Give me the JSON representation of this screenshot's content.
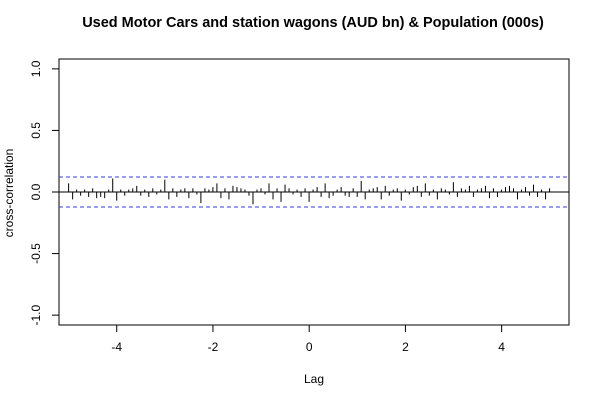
{
  "chart_data": {
    "type": "bar",
    "subtype": "cross-correlation (ccf) plot",
    "title": "Used Motor Cars and station wagons (AUD bn) & Population (000s)",
    "xlabel": "Lag",
    "ylabel": "cross-correlation",
    "xlim": [
      -5.2,
      5.4
    ],
    "ylim": [
      -1.08,
      1.08
    ],
    "x_ticks": [
      -4,
      -2,
      0,
      2,
      4
    ],
    "x_tick_labels": [
      "-4",
      "-2",
      "0",
      "2",
      "4"
    ],
    "y_ticks": [
      -1.0,
      -0.5,
      0.0,
      0.5,
      1.0
    ],
    "y_tick_labels": [
      "-1.0",
      "-0.5",
      "0.0",
      "0.5",
      "1.0"
    ],
    "confidence_limit": 0.122,
    "confidence_color": "#3b3bdb",
    "bar_color": "#000000",
    "lag_step": 0.0833,
    "lag_start": -5.0,
    "values": [
      0.07,
      -0.06,
      0.02,
      -0.03,
      0.02,
      -0.04,
      0.03,
      -0.05,
      -0.04,
      -0.05,
      0.02,
      0.11,
      -0.07,
      0.02,
      -0.03,
      0.02,
      0.03,
      0.05,
      -0.03,
      0.02,
      -0.04,
      0.03,
      -0.02,
      0.02,
      0.1,
      -0.06,
      0.03,
      -0.04,
      0.02,
      0.03,
      -0.05,
      0.03,
      -0.02,
      -0.09,
      0.03,
      0.02,
      0.04,
      0.07,
      -0.05,
      0.03,
      -0.06,
      0.05,
      0.04,
      0.03,
      0.02,
      -0.03,
      -0.1,
      0.02,
      0.03,
      -0.02,
      0.07,
      -0.06,
      0.03,
      -0.08,
      0.06,
      0.03,
      -0.02,
      0.02,
      -0.04,
      0.03,
      -0.08,
      0.02,
      0.04,
      -0.04,
      0.07,
      -0.05,
      -0.03,
      0.02,
      0.04,
      -0.03,
      -0.04,
      0.03,
      -0.04,
      0.09,
      -0.06,
      0.02,
      0.03,
      0.04,
      -0.06,
      0.05,
      -0.03,
      0.02,
      0.03,
      -0.07,
      0.02,
      -0.02,
      0.04,
      0.05,
      -0.04,
      0.07,
      -0.03,
      0.02,
      -0.06,
      0.03,
      0.02,
      -0.02,
      0.08,
      -0.04,
      0.03,
      0.02,
      0.05,
      -0.04,
      0.02,
      0.03,
      0.05,
      -0.05,
      0.03,
      -0.04,
      0.02,
      0.04,
      0.05,
      0.03,
      -0.06,
      0.02,
      0.04,
      -0.03,
      0.06,
      -0.04,
      0.02,
      -0.06,
      0.03
    ]
  }
}
